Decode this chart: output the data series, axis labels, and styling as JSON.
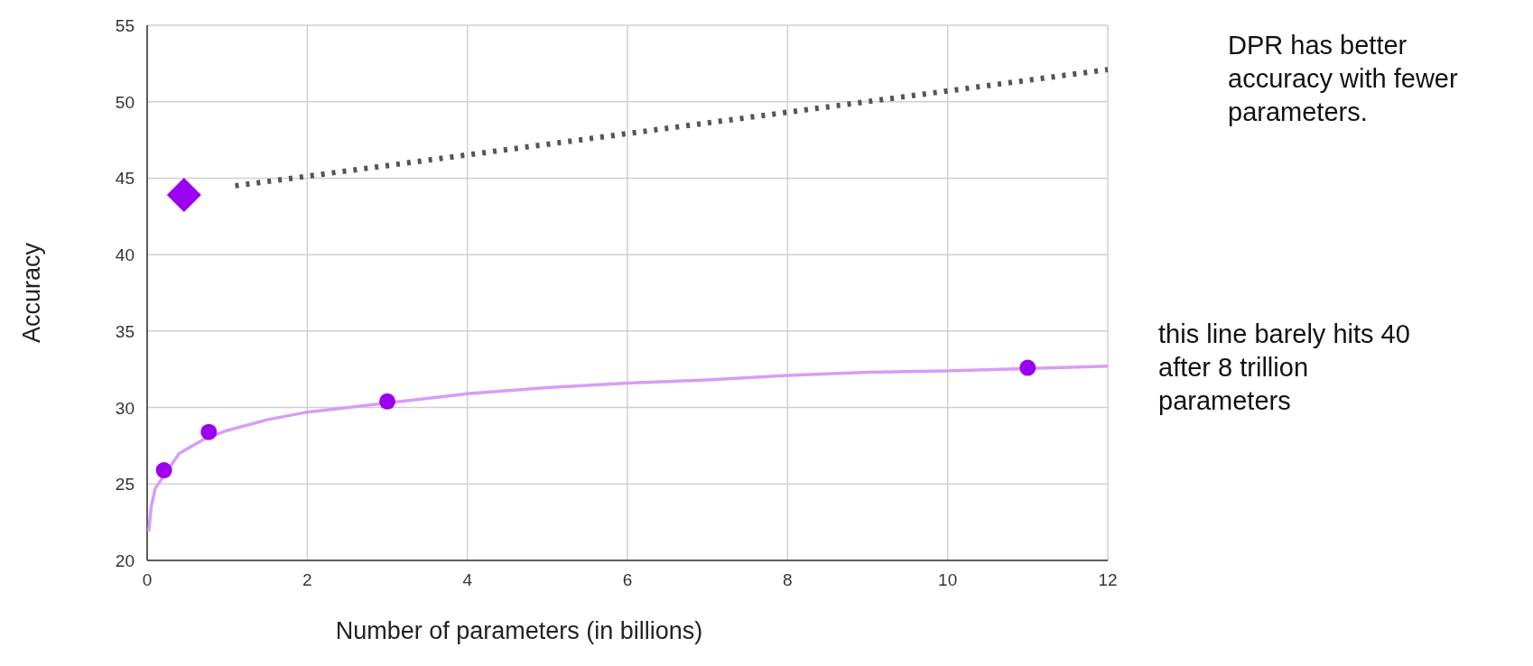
{
  "chart_data": {
    "type": "scatter",
    "xlabel": "Number of parameters (in billions)",
    "ylabel": "Accuracy",
    "xlim": [
      0,
      12
    ],
    "xticks": [
      0,
      2,
      4,
      6,
      8,
      10,
      12
    ],
    "ylim": [
      20,
      55
    ],
    "yticks": [
      20,
      25,
      30,
      35,
      40,
      45,
      50,
      55
    ],
    "grid": true,
    "series": [
      {
        "type": "line",
        "color": "#d89cf6",
        "line_style": "solid",
        "marker": "none",
        "x": [
          0.02,
          0.05,
          0.1,
          0.4,
          0.7,
          1,
          1.5,
          2,
          4,
          5,
          6,
          7,
          8,
          9,
          10,
          12
        ],
        "values": [
          21.9,
          23.5,
          24.7,
          27.0,
          27.9,
          28.5,
          29.2,
          29.7,
          30.9,
          31.3,
          31.6,
          31.8,
          32.1,
          32.3,
          32.4,
          32.7
        ]
      },
      {
        "color": "#9b00f0",
        "marker": "circle",
        "x": [
          0.21,
          0.77,
          3.0,
          11.0
        ],
        "values": [
          25.9,
          28.4,
          30.4,
          32.6
        ]
      },
      {
        "color": "#9b00f0",
        "marker": "diamond",
        "x": [
          0.46
        ],
        "values": [
          43.9
        ]
      },
      {
        "type": "line",
        "color": "#555555",
        "line_style": "dotted",
        "marker": "none",
        "x": [
          1.1,
          12
        ],
        "values": [
          44.5,
          52.1
        ]
      }
    ],
    "annotations": [
      "DPR has better accuracy with fewer parameters.",
      "this line barely hits 40 after 8 trillion parameters"
    ]
  }
}
